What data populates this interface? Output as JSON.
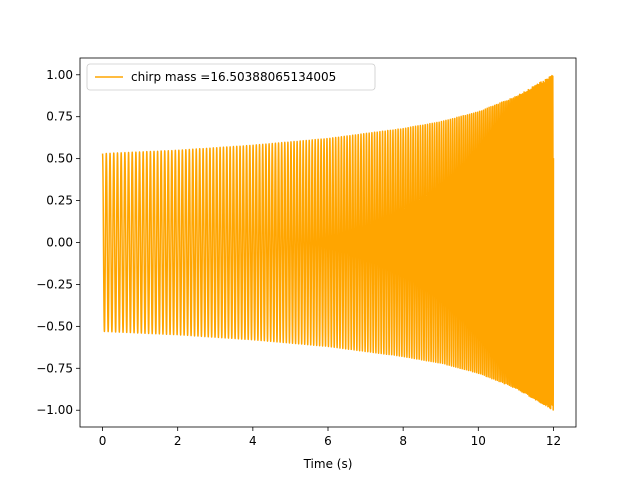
{
  "chart_data": {
    "type": "line",
    "title": "",
    "xlabel": "Time (s)",
    "ylabel": "",
    "xlim": [
      -0.6,
      12.6
    ],
    "ylim": [
      -1.1,
      1.1
    ],
    "x_ticks": [
      0,
      2,
      4,
      6,
      8,
      10,
      12
    ],
    "y_ticks": [
      -1.0,
      -0.75,
      -0.5,
      -0.25,
      0.0,
      0.25,
      0.5,
      0.75,
      1.0
    ],
    "x_tick_labels": [
      "0",
      "2",
      "4",
      "6",
      "8",
      "10",
      "12"
    ],
    "y_tick_labels": [
      "−1.00",
      "−0.75",
      "−0.50",
      "−0.25",
      "0.00",
      "0.25",
      "0.50",
      "0.75",
      "1.00"
    ],
    "grid": false,
    "legend_position": "upper-left",
    "series": [
      {
        "name": "chirp mass =16.50388065134005",
        "color": "#ffa500",
        "kind": "chirp",
        "t_start": 0,
        "t_end": 12,
        "amplitude_start": 0.53,
        "amplitude_end": 1.0,
        "envelope_samples": [
          {
            "t": 0,
            "a": 0.53
          },
          {
            "t": 2,
            "a": 0.55
          },
          {
            "t": 4,
            "a": 0.58
          },
          {
            "t": 6,
            "a": 0.62
          },
          {
            "t": 8,
            "a": 0.68
          },
          {
            "t": 9,
            "a": 0.72
          },
          {
            "t": 10,
            "a": 0.78
          },
          {
            "t": 11,
            "a": 0.87
          },
          {
            "t": 12,
            "a": 1.0
          }
        ]
      }
    ]
  }
}
